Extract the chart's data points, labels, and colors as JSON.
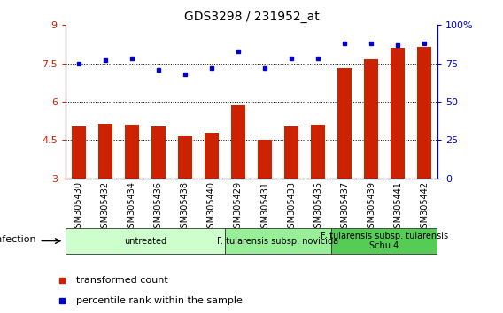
{
  "title": "GDS3298 / 231952_at",
  "samples": [
    "GSM305430",
    "GSM305432",
    "GSM305434",
    "GSM305436",
    "GSM305438",
    "GSM305440",
    "GSM305429",
    "GSM305431",
    "GSM305433",
    "GSM305435",
    "GSM305437",
    "GSM305439",
    "GSM305441",
    "GSM305442"
  ],
  "bar_values": [
    5.05,
    5.12,
    5.1,
    5.05,
    4.65,
    4.78,
    5.85,
    4.52,
    5.05,
    5.1,
    7.3,
    7.65,
    8.1,
    8.15
  ],
  "dot_values": [
    75,
    77,
    78,
    71,
    68,
    72,
    83,
    72,
    78,
    78,
    88,
    88,
    87,
    88
  ],
  "bar_color": "#CC2200",
  "dot_color": "#0000CC",
  "ylim_left": [
    3,
    9
  ],
  "ylim_right": [
    0,
    100
  ],
  "yticks_left": [
    3,
    4.5,
    6,
    7.5,
    9
  ],
  "yticks_right": [
    0,
    25,
    50,
    75,
    100
  ],
  "ytick_labels_right": [
    "0",
    "25",
    "50",
    "75",
    "100%"
  ],
  "grid_lines": [
    4.5,
    6.0,
    7.5
  ],
  "groups": [
    {
      "label": "untreated",
      "start": 0,
      "end": 5,
      "color": "#ccffcc"
    },
    {
      "label": "F. tularensis subsp. novicida",
      "start": 6,
      "end": 9,
      "color": "#99ee99"
    },
    {
      "label": "F. tularensis subsp. tularensis\nSchu 4",
      "start": 10,
      "end": 13,
      "color": "#55cc55"
    }
  ],
  "infection_label": "infection",
  "legend_bar_label": "transformed count",
  "legend_dot_label": "percentile rank within the sample",
  "bar_width": 0.55,
  "xtick_bg_color": "#cccccc",
  "group_border_color": "#333333",
  "title_fontsize": 10,
  "axis_fontsize": 8,
  "tick_fontsize": 7,
  "group_fontsize": 7,
  "legend_fontsize": 8
}
